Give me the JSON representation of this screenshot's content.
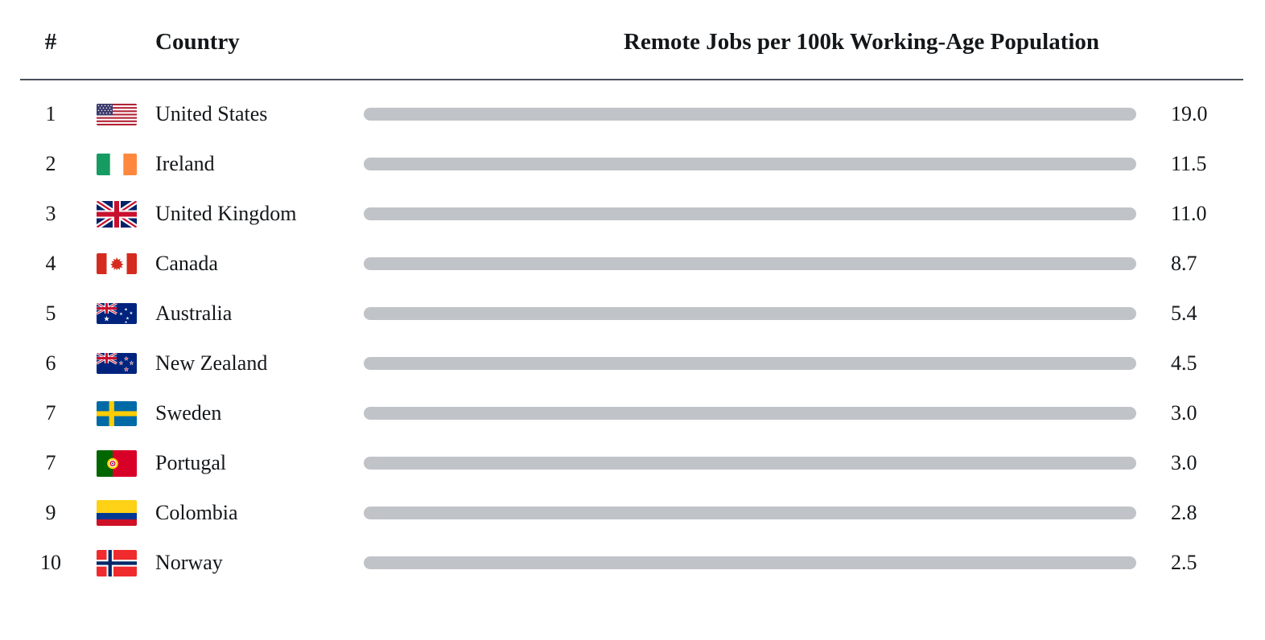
{
  "header": {
    "rank_label": "#",
    "country_label": "Country",
    "title": "Remote Jobs per 100k Working-Age Population"
  },
  "chart_data": {
    "type": "bar",
    "orientation": "horizontal",
    "title": "Remote Jobs per 100k Working-Age Population",
    "categories": [
      "United States",
      "Ireland",
      "United Kingdom",
      "Canada",
      "Australia",
      "New Zealand",
      "Sweden",
      "Portugal",
      "Colombia",
      "Norway"
    ],
    "values": [
      19.0,
      11.5,
      11.0,
      8.7,
      5.4,
      4.5,
      3.0,
      3.0,
      2.8,
      2.5
    ],
    "value_labels": [
      "19.0",
      "11.5",
      "11.0",
      "8.7",
      "5.4",
      "4.5",
      "3.0",
      "3.0",
      "2.8",
      "2.5"
    ],
    "ranks": [
      "1",
      "2",
      "3",
      "4",
      "5",
      "6",
      "7",
      "7",
      "9",
      "10"
    ],
    "flags": [
      "us",
      "ie",
      "gb",
      "ca",
      "au",
      "nz",
      "se",
      "pt",
      "co",
      "no"
    ],
    "max_value": 19.0,
    "xlim": [
      0,
      19
    ],
    "grid": false,
    "legend": false,
    "bar_color": "#66cb34",
    "track_color": "#c0c3c7",
    "divider_color": "#47515c",
    "text_color": "#14171a"
  }
}
